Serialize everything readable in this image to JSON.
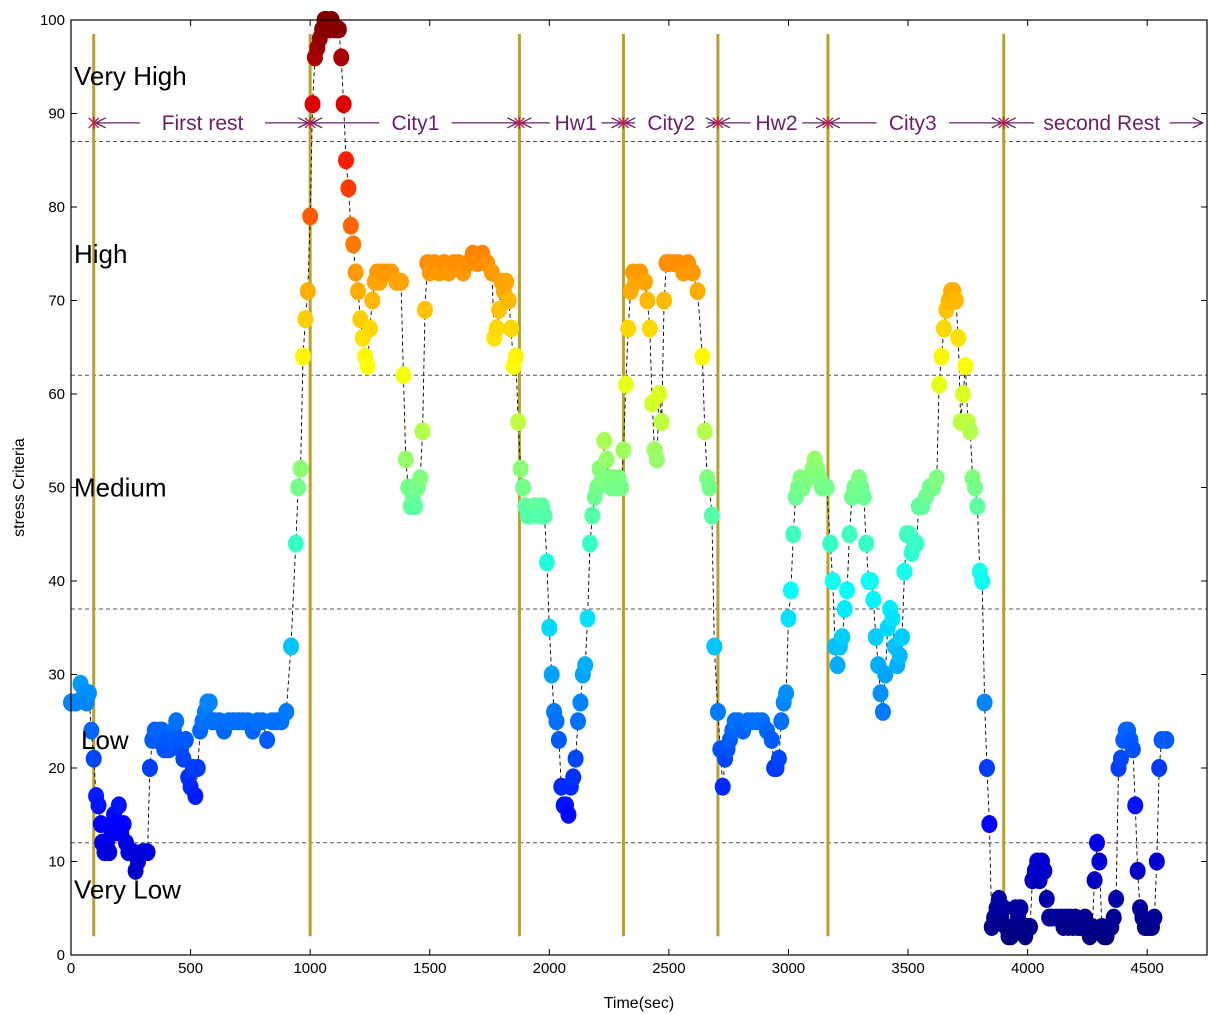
{
  "chart_data": {
    "type": "scatter",
    "title": "",
    "xlabel": "Time(sec)",
    "ylabel": "stress  Criteria",
    "xlim": [
      0,
      4750
    ],
    "ylim": [
      0,
      100
    ],
    "xticks": [
      0,
      500,
      1000,
      1500,
      2000,
      2500,
      3000,
      3500,
      4000,
      4500
    ],
    "yticks": [
      0,
      10,
      20,
      30,
      40,
      50,
      60,
      70,
      80,
      90,
      100
    ],
    "grid": false,
    "legend": "none",
    "colormap": "jet",
    "threshold_lines": [
      12,
      37,
      62,
      87
    ],
    "level_labels": [
      {
        "text": "Very High",
        "y": 94
      },
      {
        "text": "High",
        "y": 75
      },
      {
        "text": "Medium",
        "y": 50
      },
      {
        "text": "Low",
        "y": 23
      },
      {
        "text": "Very Low",
        "y": 7
      }
    ],
    "phase_boundaries": [
      95,
      1000,
      1875,
      2310,
      2705,
      3165,
      3900
    ],
    "phase_arrow_y": 89,
    "phase_labels": [
      {
        "text": "First rest",
        "x": 550
      },
      {
        "text": "City1",
        "x": 1440
      },
      {
        "text": "Hw1",
        "x": 2110
      },
      {
        "text": "City2",
        "x": 2510
      },
      {
        "text": "Hw2",
        "x": 2950
      },
      {
        "text": "City3",
        "x": 3520
      },
      {
        "text": "second Rest",
        "x": 4310
      }
    ],
    "points": [
      [
        0,
        27
      ],
      [
        20,
        27
      ],
      [
        40,
        29
      ],
      [
        55,
        28
      ],
      [
        65,
        27
      ],
      [
        75,
        28
      ],
      [
        85,
        24
      ],
      [
        95,
        21
      ],
      [
        105,
        17
      ],
      [
        115,
        16
      ],
      [
        125,
        14
      ],
      [
        130,
        12
      ],
      [
        140,
        11
      ],
      [
        150,
        12
      ],
      [
        160,
        11
      ],
      [
        170,
        13
      ],
      [
        180,
        15
      ],
      [
        190,
        14
      ],
      [
        200,
        16
      ],
      [
        210,
        13
      ],
      [
        220,
        14
      ],
      [
        230,
        12
      ],
      [
        240,
        11
      ],
      [
        260,
        11
      ],
      [
        270,
        9
      ],
      [
        280,
        10
      ],
      [
        300,
        11
      ],
      [
        320,
        11
      ],
      [
        330,
        20
      ],
      [
        340,
        23
      ],
      [
        350,
        24
      ],
      [
        360,
        23
      ],
      [
        370,
        24
      ],
      [
        380,
        24
      ],
      [
        390,
        22
      ],
      [
        400,
        23
      ],
      [
        410,
        22
      ],
      [
        420,
        23
      ],
      [
        430,
        24
      ],
      [
        440,
        25
      ],
      [
        450,
        23
      ],
      [
        460,
        22
      ],
      [
        470,
        21
      ],
      [
        480,
        23
      ],
      [
        490,
        19
      ],
      [
        500,
        18
      ],
      [
        510,
        20
      ],
      [
        520,
        17
      ],
      [
        530,
        20
      ],
      [
        540,
        24
      ],
      [
        550,
        25
      ],
      [
        560,
        26
      ],
      [
        570,
        27
      ],
      [
        580,
        27
      ],
      [
        590,
        25
      ],
      [
        600,
        25
      ],
      [
        620,
        25
      ],
      [
        640,
        24
      ],
      [
        660,
        25
      ],
      [
        680,
        25
      ],
      [
        700,
        25
      ],
      [
        720,
        25
      ],
      [
        740,
        25
      ],
      [
        760,
        24
      ],
      [
        780,
        25
      ],
      [
        800,
        25
      ],
      [
        820,
        23
      ],
      [
        840,
        25
      ],
      [
        860,
        25
      ],
      [
        880,
        25
      ],
      [
        900,
        26
      ],
      [
        920,
        33
      ],
      [
        940,
        44
      ],
      [
        950,
        50
      ],
      [
        960,
        52
      ],
      [
        970,
        64
      ],
      [
        980,
        68
      ],
      [
        990,
        71
      ],
      [
        1000,
        79
      ],
      [
        1010,
        91
      ],
      [
        1020,
        96
      ],
      [
        1030,
        97
      ],
      [
        1040,
        98
      ],
      [
        1050,
        99
      ],
      [
        1060,
        100
      ],
      [
        1070,
        100
      ],
      [
        1080,
        99
      ],
      [
        1090,
        100
      ],
      [
        1100,
        99
      ],
      [
        1110,
        99
      ],
      [
        1120,
        99
      ],
      [
        1130,
        96
      ],
      [
        1140,
        91
      ],
      [
        1150,
        85
      ],
      [
        1160,
        82
      ],
      [
        1170,
        78
      ],
      [
        1180,
        76
      ],
      [
        1190,
        73
      ],
      [
        1200,
        71
      ],
      [
        1210,
        68
      ],
      [
        1220,
        66
      ],
      [
        1230,
        64
      ],
      [
        1240,
        63
      ],
      [
        1250,
        67
      ],
      [
        1260,
        70
      ],
      [
        1270,
        72
      ],
      [
        1280,
        73
      ],
      [
        1290,
        72
      ],
      [
        1300,
        73
      ],
      [
        1320,
        73
      ],
      [
        1340,
        73
      ],
      [
        1360,
        72
      ],
      [
        1380,
        72
      ],
      [
        1390,
        62
      ],
      [
        1400,
        53
      ],
      [
        1410,
        50
      ],
      [
        1420,
        48
      ],
      [
        1430,
        49
      ],
      [
        1440,
        48
      ],
      [
        1450,
        50
      ],
      [
        1460,
        51
      ],
      [
        1470,
        56
      ],
      [
        1480,
        69
      ],
      [
        1490,
        74
      ],
      [
        1500,
        73
      ],
      [
        1520,
        74
      ],
      [
        1540,
        73
      ],
      [
        1560,
        74
      ],
      [
        1580,
        73
      ],
      [
        1600,
        74
      ],
      [
        1620,
        74
      ],
      [
        1640,
        73
      ],
      [
        1660,
        74
      ],
      [
        1680,
        75
      ],
      [
        1700,
        74
      ],
      [
        1720,
        75
      ],
      [
        1740,
        74
      ],
      [
        1760,
        73
      ],
      [
        1770,
        66
      ],
      [
        1780,
        67
      ],
      [
        1790,
        69
      ],
      [
        1800,
        72
      ],
      [
        1810,
        71
      ],
      [
        1820,
        72
      ],
      [
        1830,
        70
      ],
      [
        1840,
        67
      ],
      [
        1850,
        63
      ],
      [
        1860,
        64
      ],
      [
        1870,
        57
      ],
      [
        1880,
        52
      ],
      [
        1890,
        50
      ],
      [
        1900,
        48
      ],
      [
        1910,
        47
      ],
      [
        1920,
        47
      ],
      [
        1940,
        48
      ],
      [
        1960,
        47
      ],
      [
        1970,
        48
      ],
      [
        1980,
        47
      ],
      [
        1990,
        42
      ],
      [
        2000,
        35
      ],
      [
        2010,
        30
      ],
      [
        2020,
        26
      ],
      [
        2030,
        25
      ],
      [
        2040,
        23
      ],
      [
        2050,
        18
      ],
      [
        2060,
        16
      ],
      [
        2070,
        16
      ],
      [
        2080,
        15
      ],
      [
        2090,
        18
      ],
      [
        2100,
        19
      ],
      [
        2110,
        21
      ],
      [
        2120,
        25
      ],
      [
        2130,
        27
      ],
      [
        2140,
        30
      ],
      [
        2150,
        31
      ],
      [
        2160,
        36
      ],
      [
        2170,
        44
      ],
      [
        2180,
        47
      ],
      [
        2190,
        49
      ],
      [
        2200,
        50
      ],
      [
        2210,
        52
      ],
      [
        2220,
        51
      ],
      [
        2230,
        55
      ],
      [
        2240,
        53
      ],
      [
        2250,
        51
      ],
      [
        2260,
        50
      ],
      [
        2270,
        51
      ],
      [
        2280,
        50
      ],
      [
        2290,
        51
      ],
      [
        2300,
        50
      ],
      [
        2310,
        54
      ],
      [
        2320,
        61
      ],
      [
        2330,
        67
      ],
      [
        2340,
        71
      ],
      [
        2350,
        73
      ],
      [
        2360,
        72
      ],
      [
        2380,
        73
      ],
      [
        2400,
        72
      ],
      [
        2410,
        70
      ],
      [
        2420,
        67
      ],
      [
        2430,
        59
      ],
      [
        2440,
        54
      ],
      [
        2450,
        53
      ],
      [
        2460,
        60
      ],
      [
        2470,
        57
      ],
      [
        2480,
        70
      ],
      [
        2490,
        74
      ],
      [
        2500,
        74
      ],
      [
        2520,
        74
      ],
      [
        2540,
        74
      ],
      [
        2560,
        73
      ],
      [
        2580,
        74
      ],
      [
        2600,
        73
      ],
      [
        2620,
        71
      ],
      [
        2640,
        64
      ],
      [
        2650,
        56
      ],
      [
        2660,
        51
      ],
      [
        2670,
        50
      ],
      [
        2680,
        47
      ],
      [
        2690,
        33
      ],
      [
        2705,
        26
      ],
      [
        2715,
        22
      ],
      [
        2725,
        18
      ],
      [
        2735,
        21
      ],
      [
        2745,
        22
      ],
      [
        2755,
        23
      ],
      [
        2765,
        24
      ],
      [
        2775,
        25
      ],
      [
        2790,
        25
      ],
      [
        2810,
        24
      ],
      [
        2830,
        25
      ],
      [
        2850,
        25
      ],
      [
        2870,
        25
      ],
      [
        2890,
        25
      ],
      [
        2910,
        24
      ],
      [
        2930,
        23
      ],
      [
        2940,
        20
      ],
      [
        2950,
        20
      ],
      [
        2960,
        21
      ],
      [
        2970,
        25
      ],
      [
        2980,
        27
      ],
      [
        2990,
        28
      ],
      [
        3000,
        36
      ],
      [
        3010,
        39
      ],
      [
        3020,
        45
      ],
      [
        3030,
        49
      ],
      [
        3040,
        50
      ],
      [
        3050,
        51
      ],
      [
        3060,
        50
      ],
      [
        3080,
        51
      ],
      [
        3100,
        52
      ],
      [
        3110,
        53
      ],
      [
        3120,
        52
      ],
      [
        3130,
        51
      ],
      [
        3140,
        50
      ],
      [
        3160,
        50
      ],
      [
        3175,
        44
      ],
      [
        3185,
        40
      ],
      [
        3195,
        33
      ],
      [
        3205,
        31
      ],
      [
        3215,
        33
      ],
      [
        3225,
        34
      ],
      [
        3235,
        37
      ],
      [
        3245,
        39
      ],
      [
        3255,
        45
      ],
      [
        3265,
        49
      ],
      [
        3275,
        50
      ],
      [
        3285,
        50
      ],
      [
        3295,
        51
      ],
      [
        3305,
        50
      ],
      [
        3315,
        49
      ],
      [
        3325,
        44
      ],
      [
        3335,
        40
      ],
      [
        3345,
        40
      ],
      [
        3355,
        38
      ],
      [
        3365,
        34
      ],
      [
        3375,
        31
      ],
      [
        3385,
        28
      ],
      [
        3395,
        26
      ],
      [
        3405,
        30
      ],
      [
        3415,
        35
      ],
      [
        3425,
        37
      ],
      [
        3435,
        36
      ],
      [
        3445,
        33
      ],
      [
        3455,
        31
      ],
      [
        3465,
        32
      ],
      [
        3475,
        34
      ],
      [
        3485,
        41
      ],
      [
        3495,
        45
      ],
      [
        3505,
        45
      ],
      [
        3515,
        43
      ],
      [
        3525,
        44
      ],
      [
        3535,
        44
      ],
      [
        3545,
        48
      ],
      [
        3560,
        48
      ],
      [
        3575,
        49
      ],
      [
        3590,
        50
      ],
      [
        3605,
        50
      ],
      [
        3620,
        51
      ],
      [
        3630,
        61
      ],
      [
        3640,
        64
      ],
      [
        3650,
        67
      ],
      [
        3660,
        69
      ],
      [
        3670,
        70
      ],
      [
        3680,
        71
      ],
      [
        3690,
        71
      ],
      [
        3700,
        70
      ],
      [
        3710,
        66
      ],
      [
        3720,
        57
      ],
      [
        3730,
        60
      ],
      [
        3740,
        63
      ],
      [
        3750,
        57
      ],
      [
        3760,
        56
      ],
      [
        3770,
        51
      ],
      [
        3780,
        50
      ],
      [
        3790,
        48
      ],
      [
        3800,
        41
      ],
      [
        3810,
        40
      ],
      [
        3820,
        27
      ],
      [
        3830,
        20
      ],
      [
        3840,
        14
      ],
      [
        3850,
        3
      ],
      [
        3860,
        4
      ],
      [
        3870,
        5
      ],
      [
        3880,
        6
      ],
      [
        3890,
        4
      ],
      [
        3900,
        5
      ],
      [
        3910,
        3
      ],
      [
        3920,
        2
      ],
      [
        3930,
        2
      ],
      [
        3940,
        3
      ],
      [
        3950,
        5
      ],
      [
        3960,
        4
      ],
      [
        3970,
        5
      ],
      [
        3980,
        3
      ],
      [
        3990,
        2
      ],
      [
        4000,
        3
      ],
      [
        4010,
        3
      ],
      [
        4020,
        8
      ],
      [
        4030,
        9
      ],
      [
        4040,
        10
      ],
      [
        4050,
        8
      ],
      [
        4060,
        10
      ],
      [
        4070,
        9
      ],
      [
        4080,
        6
      ],
      [
        4090,
        4
      ],
      [
        4100,
        4
      ],
      [
        4120,
        4
      ],
      [
        4140,
        4
      ],
      [
        4150,
        3
      ],
      [
        4160,
        4
      ],
      [
        4170,
        3
      ],
      [
        4180,
        4
      ],
      [
        4190,
        3
      ],
      [
        4200,
        4
      ],
      [
        4210,
        3
      ],
      [
        4220,
        3
      ],
      [
        4240,
        4
      ],
      [
        4250,
        3
      ],
      [
        4260,
        2
      ],
      [
        4270,
        3
      ],
      [
        4280,
        8
      ],
      [
        4290,
        12
      ],
      [
        4300,
        10
      ],
      [
        4310,
        3
      ],
      [
        4320,
        2
      ],
      [
        4330,
        2
      ],
      [
        4340,
        3
      ],
      [
        4350,
        3
      ],
      [
        4360,
        4
      ],
      [
        4370,
        6
      ],
      [
        4380,
        20
      ],
      [
        4390,
        21
      ],
      [
        4400,
        23
      ],
      [
        4410,
        24
      ],
      [
        4420,
        24
      ],
      [
        4430,
        23
      ],
      [
        4440,
        22
      ],
      [
        4450,
        16
      ],
      [
        4460,
        9
      ],
      [
        4470,
        5
      ],
      [
        4480,
        4
      ],
      [
        4490,
        3
      ],
      [
        4500,
        3
      ],
      [
        4510,
        3
      ],
      [
        4520,
        3
      ],
      [
        4530,
        4
      ],
      [
        4540,
        10
      ],
      [
        4550,
        20
      ],
      [
        4560,
        23
      ],
      [
        4580,
        23
      ]
    ]
  }
}
